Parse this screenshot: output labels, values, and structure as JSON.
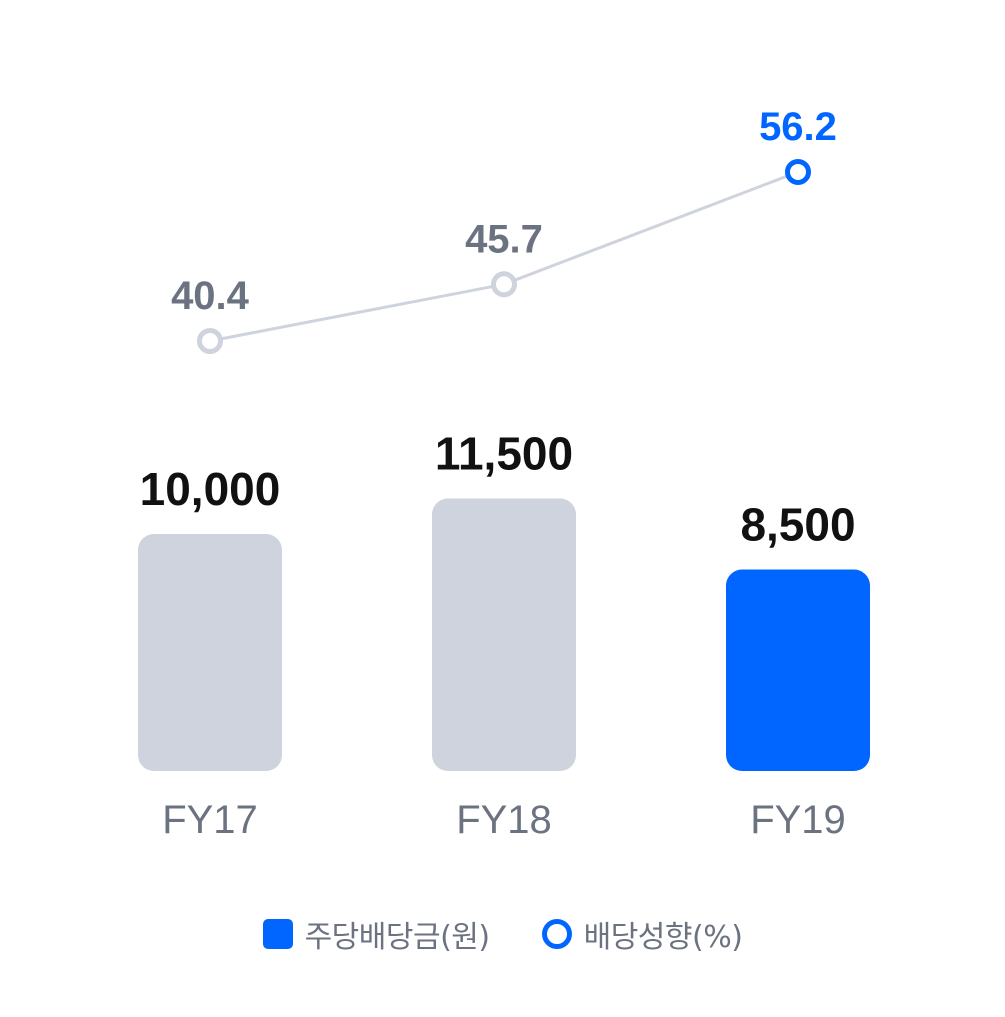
{
  "chart_data": {
    "type": "bar+line",
    "categories": [
      "FY17",
      "FY18",
      "FY19"
    ],
    "series": [
      {
        "name": "주당배당금(원)",
        "type": "bar",
        "values": [
          10000,
          11500,
          8500
        ]
      },
      {
        "name": "배당성향(%)",
        "type": "line",
        "values": [
          40.4,
          45.7,
          56.2
        ]
      }
    ],
    "value_labels": {
      "bar": [
        "10,000",
        "11,500",
        "8,500"
      ],
      "line": [
        "40.4",
        "45.7",
        "56.2"
      ]
    },
    "highlight_index": 2,
    "grid": false,
    "legend_position": "bottom-center"
  },
  "colors": {
    "highlight": "#0066ff",
    "muted_bar": "#cfd3dd",
    "muted_line": "#cfd3dd",
    "muted_text": "#6b7280",
    "value_text": "#111111"
  },
  "legend": {
    "bar_label": "주당배당금(원)",
    "line_label": "배당성향(%)"
  }
}
